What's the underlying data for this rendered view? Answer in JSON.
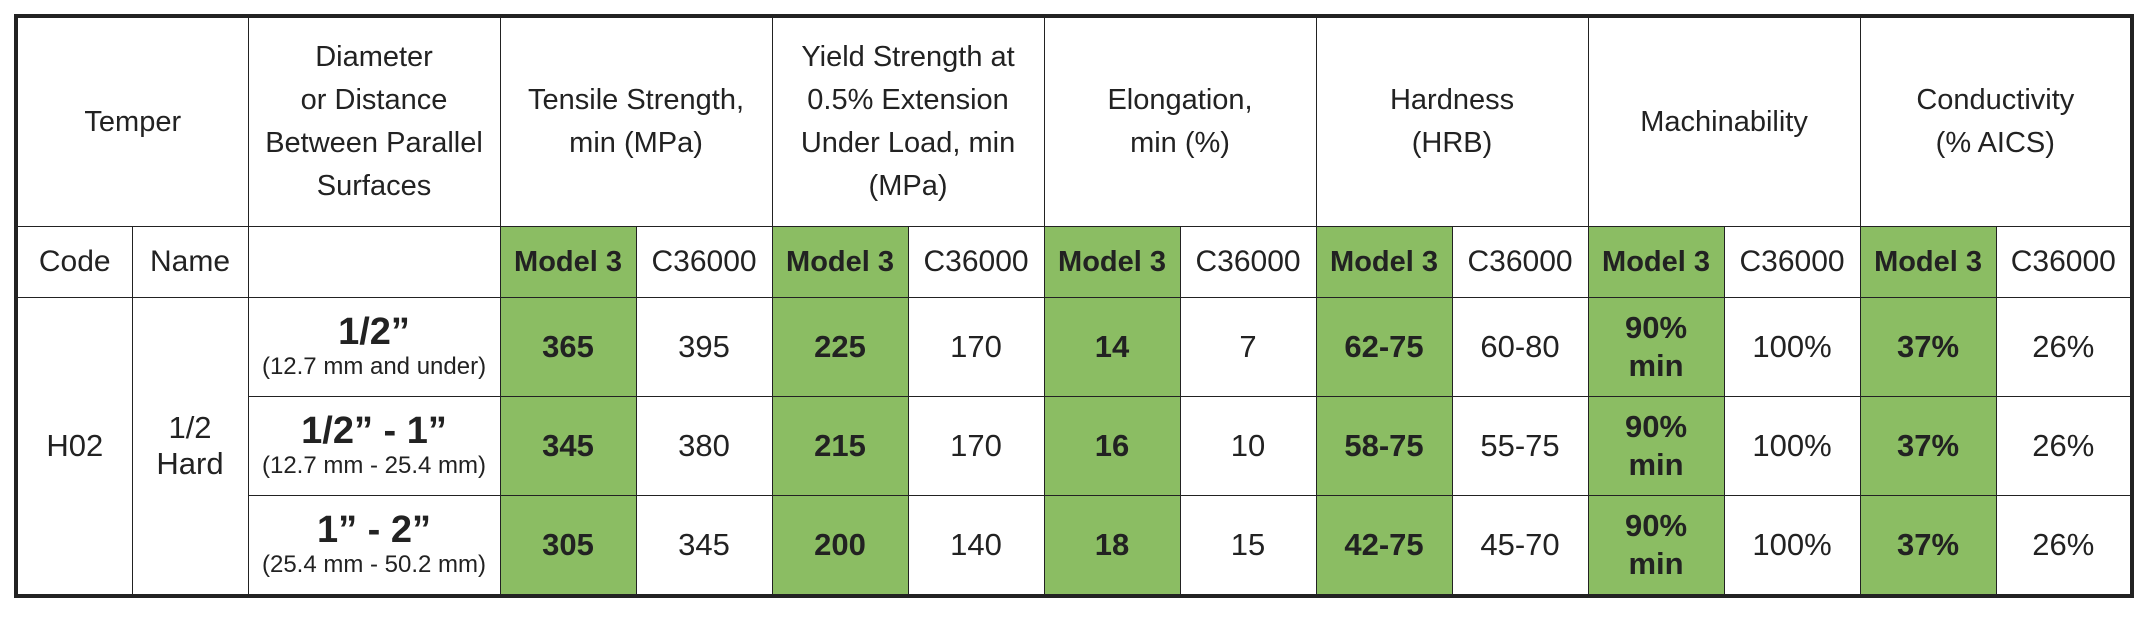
{
  "table": {
    "headers": {
      "temper": "Temper",
      "diameter": "Diameter\nor Distance\nBetween Parallel\nSurfaces",
      "tensile": "Tensile Strength,\nmin (MPa)",
      "yield": "Yield Strength at\n0.5% Extension\nUnder Load, min\n(MPa)",
      "elongation": "Elongation,\nmin (%)",
      "hardness": "Hardness\n(HRB)",
      "machinability": "Machinability",
      "conductivity": "Conductivity\n(% AICS)"
    },
    "subheaders": {
      "code": "Code",
      "name": "Name",
      "model": "Model 3",
      "alloy": "C36000"
    },
    "temper_code": "H02",
    "temper_name": "1/2\nHard",
    "rows": [
      {
        "size": "1/2”",
        "size_mm": "(12.7 mm and under)",
        "tensile_model": "365",
        "tensile_alloy": "395",
        "yield_model": "225",
        "yield_alloy": "170",
        "elong_model": "14",
        "elong_alloy": "7",
        "hard_model": "62-75",
        "hard_alloy": "60-80",
        "mach_model": "90%\nmin",
        "mach_alloy": "100%",
        "cond_model": "37%",
        "cond_alloy": "26%"
      },
      {
        "size": "1/2” - 1”",
        "size_mm": "(12.7 mm - 25.4 mm)",
        "tensile_model": "345",
        "tensile_alloy": "380",
        "yield_model": "215",
        "yield_alloy": "170",
        "elong_model": "16",
        "elong_alloy": "10",
        "hard_model": "58-75",
        "hard_alloy": "55-75",
        "mach_model": "90%\nmin",
        "mach_alloy": "100%",
        "cond_model": "37%",
        "cond_alloy": "26%"
      },
      {
        "size": "1” - 2”",
        "size_mm": "(25.4 mm - 50.2 mm)",
        "tensile_model": "305",
        "tensile_alloy": "345",
        "yield_model": "200",
        "yield_alloy": "140",
        "elong_model": "18",
        "elong_alloy": "15",
        "hard_model": "42-75",
        "hard_alloy": "45-70",
        "mach_model": "90%\nmin",
        "mach_alloy": "100%",
        "cond_model": "37%",
        "cond_alloy": "26%"
      }
    ],
    "colors": {
      "highlight": "#8bbd63",
      "border": "#222222"
    }
  }
}
